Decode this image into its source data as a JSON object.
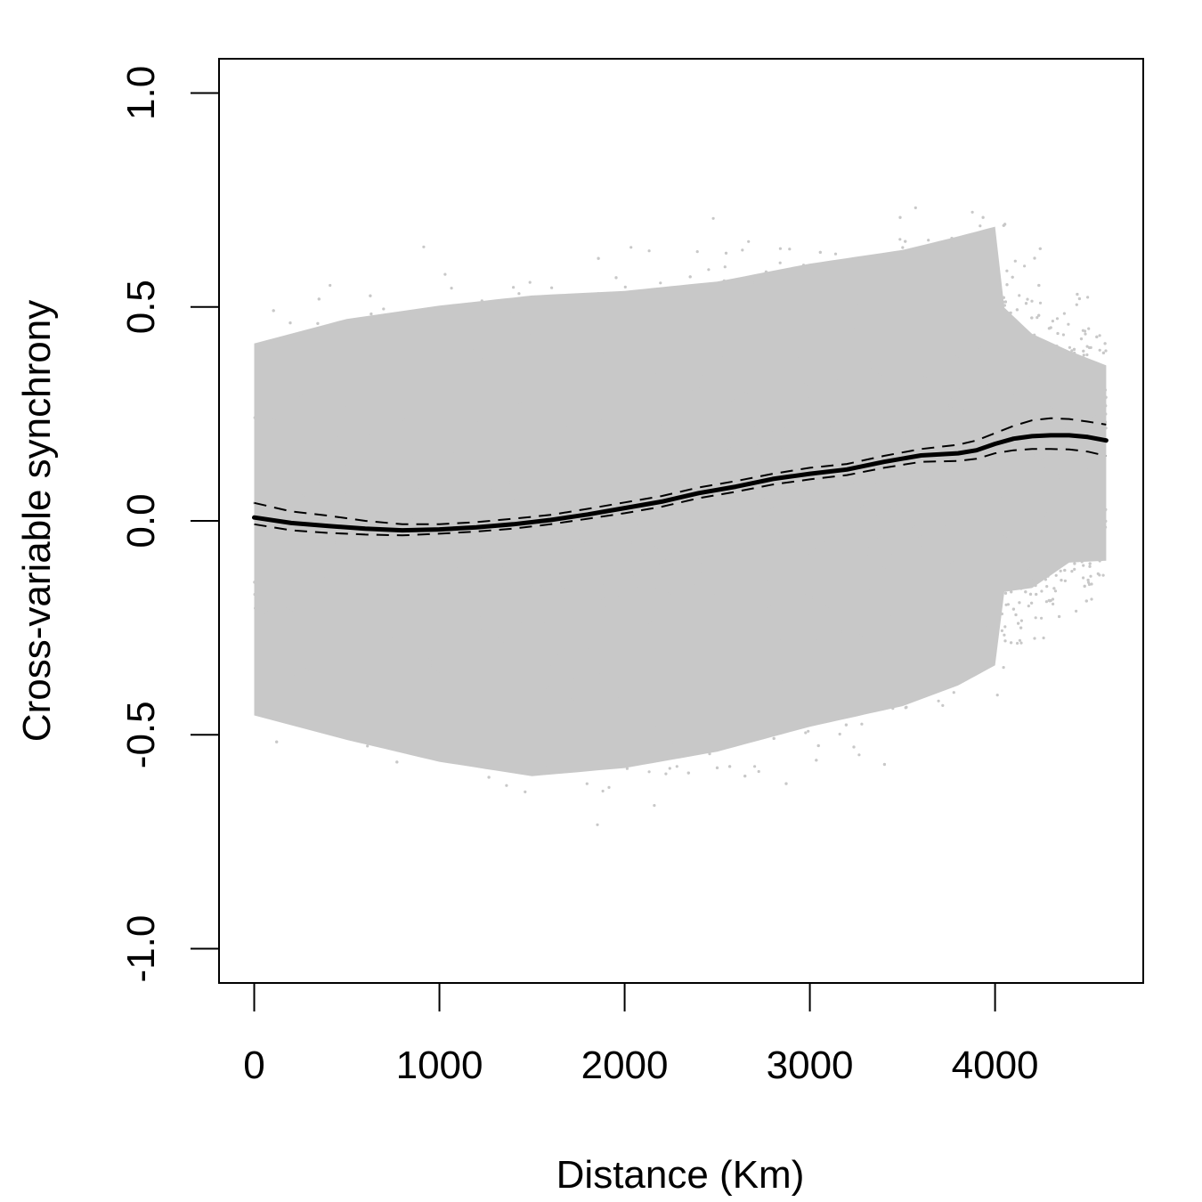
{
  "chart_data": {
    "type": "scatter",
    "title": "",
    "xlabel": "Distance (Km)",
    "ylabel": "Cross-variable synchrony",
    "xlim": [
      -190,
      4800
    ],
    "ylim": [
      -1.08,
      1.08
    ],
    "x_ticks": [
      0,
      1000,
      2000,
      3000,
      4000
    ],
    "x_tick_labels": [
      "0",
      "1000",
      "2000",
      "3000",
      "4000"
    ],
    "y_ticks": [
      -1.0,
      -0.5,
      0.0,
      0.5,
      1.0
    ],
    "y_tick_labels": [
      "-1.0",
      "-0.5",
      "0.0",
      "0.5",
      "1.0"
    ],
    "grid": false,
    "legend": "none",
    "colors": {
      "points": "#c8c8c8",
      "fit": "#000000",
      "confidence": "#000000"
    },
    "scatter_envelope": {
      "x": [
        0,
        500,
        1000,
        1500,
        2000,
        2500,
        3000,
        3500,
        3800,
        4000,
        4200,
        4400,
        4600
      ],
      "upper": [
        0.51,
        0.58,
        0.62,
        0.65,
        0.66,
        0.68,
        0.72,
        0.75,
        0.78,
        0.8,
        0.68,
        0.6,
        0.55
      ],
      "lower": [
        -0.55,
        -0.62,
        -0.68,
        -0.72,
        -0.7,
        -0.66,
        -0.6,
        -0.55,
        -0.5,
        -0.45,
        -0.4,
        -0.3,
        -0.28
      ]
    },
    "series": [
      {
        "style": "solid",
        "x": [
          0,
          200,
          400,
          600,
          800,
          1000,
          1200,
          1400,
          1600,
          1800,
          2000,
          2200,
          2400,
          2600,
          2800,
          3000,
          3200,
          3400,
          3600,
          3800,
          3900,
          4000,
          4100,
          4200,
          4300,
          4400,
          4500,
          4600
        ],
        "y": [
          0.008,
          -0.005,
          -0.012,
          -0.018,
          -0.022,
          -0.02,
          -0.015,
          -0.008,
          0.002,
          0.015,
          0.03,
          0.045,
          0.065,
          0.08,
          0.098,
          0.11,
          0.12,
          0.138,
          0.153,
          0.158,
          0.165,
          0.18,
          0.192,
          0.198,
          0.2,
          0.2,
          0.196,
          0.188
        ]
      },
      {
        "style": "dashed",
        "x": [
          0,
          200,
          400,
          600,
          800,
          1000,
          1200,
          1400,
          1600,
          1800,
          2000,
          2200,
          2400,
          2600,
          2800,
          3000,
          3200,
          3400,
          3600,
          3800,
          3900,
          4000,
          4100,
          4200,
          4300,
          4400,
          4500,
          4600
        ],
        "y": [
          0.042,
          0.022,
          0.012,
          0.0,
          -0.008,
          -0.008,
          -0.003,
          0.005,
          0.014,
          0.028,
          0.043,
          0.058,
          0.078,
          0.093,
          0.11,
          0.124,
          0.133,
          0.152,
          0.168,
          0.178,
          0.188,
          0.205,
          0.222,
          0.235,
          0.24,
          0.238,
          0.232,
          0.225
        ]
      },
      {
        "style": "dashed",
        "x": [
          0,
          200,
          400,
          600,
          800,
          1000,
          1200,
          1400,
          1600,
          1800,
          2000,
          2200,
          2400,
          2600,
          2800,
          3000,
          3200,
          3400,
          3600,
          3800,
          3900,
          4000,
          4100,
          4200,
          4300,
          4400,
          4500,
          4600
        ],
        "y": [
          -0.008,
          -0.022,
          -0.028,
          -0.032,
          -0.034,
          -0.03,
          -0.025,
          -0.018,
          -0.008,
          0.005,
          0.018,
          0.033,
          0.053,
          0.068,
          0.085,
          0.097,
          0.107,
          0.124,
          0.138,
          0.14,
          0.145,
          0.158,
          0.165,
          0.168,
          0.168,
          0.167,
          0.162,
          0.152
        ]
      }
    ]
  }
}
